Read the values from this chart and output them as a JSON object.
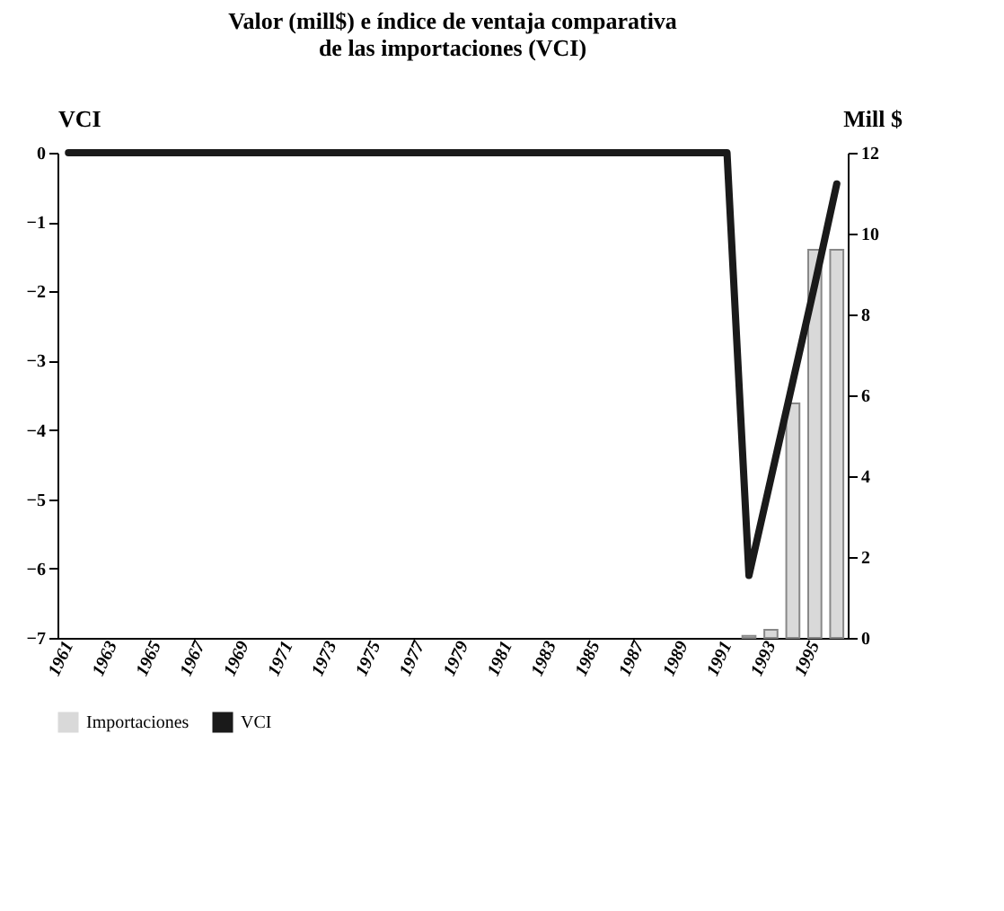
{
  "chart_data": {
    "type": "bar",
    "title": "Valor (mill$) e índice de ventaja comparativa de las importaciones (VCI)",
    "ylabel": "VCI",
    "y2label": "Mill $",
    "categories": [
      "1961",
      null,
      "1963",
      null,
      "1965",
      null,
      "1967",
      null,
      "1969",
      null,
      "1971",
      null,
      "1973",
      null,
      "1975",
      null,
      "1977",
      null,
      "1979",
      null,
      "1981",
      null,
      "1983",
      null,
      "1985",
      null,
      "1987",
      null,
      "1989",
      null,
      "1991",
      null,
      "1993",
      null,
      "1995",
      null
    ],
    "series": [
      {
        "name": "Importaciones",
        "type": "bar",
        "axis": "y2",
        "color": "#d9d9d9",
        "values": [
          0,
          0,
          0,
          0,
          0,
          0,
          0,
          0,
          0,
          0,
          0,
          0,
          0,
          0,
          0,
          0,
          0,
          0,
          0,
          0,
          0,
          0,
          0,
          0,
          0,
          0,
          0,
          0,
          0,
          0,
          0,
          0.05,
          0.2,
          5.8,
          9.6,
          9.6
        ]
      },
      {
        "name": "VCI",
        "type": "line",
        "color": "#1a1a1a",
        "values": [
          0,
          0,
          0,
          0,
          0,
          0,
          0,
          0,
          0,
          0,
          0,
          0,
          0,
          0,
          0,
          0,
          0,
          0,
          0,
          0,
          0,
          0,
          0,
          0,
          0,
          0,
          0,
          0,
          0,
          0,
          0,
          -6.1,
          -4.7,
          -3.3,
          -1.9,
          -0.45
        ]
      }
    ],
    "ylim": [
      -7,
      0
    ],
    "yticks": [
      -7,
      -6,
      -5,
      -4,
      -3,
      -2,
      -1,
      0
    ],
    "y2lim": [
      0,
      12
    ],
    "y2ticks": [
      0,
      2,
      4,
      6,
      8,
      10,
      12
    ],
    "legend": "bottom"
  }
}
